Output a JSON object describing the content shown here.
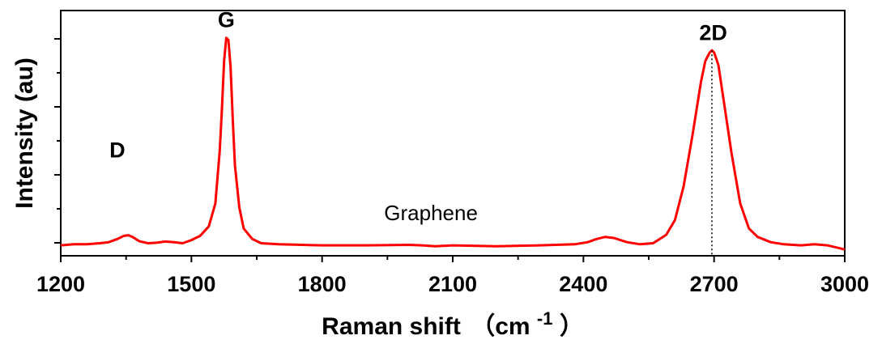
{
  "chart_data": {
    "type": "line",
    "xlabel": "Raman shift",
    "xlabel_unit": "（cm",
    "xlabel_unit_sup": "-1",
    "xlabel_unit_close": "）",
    "ylabel": "Intensity (au)",
    "xlim": [
      1200,
      3000
    ],
    "ylim": [
      -0.05,
      1.12
    ],
    "x_ticks": [
      1200,
      1500,
      1800,
      2100,
      2400,
      2700,
      3000
    ],
    "x_tick_labels": [
      "1200",
      "1500",
      "1800",
      "2100",
      "2400",
      "2700",
      "3000"
    ],
    "y_tick_labels_visible": false,
    "grid": false,
    "series": [
      {
        "color": "#ff0000",
        "x": [
          1200,
          1230,
          1260,
          1290,
          1310,
          1330,
          1345,
          1355,
          1365,
          1380,
          1400,
          1420,
          1440,
          1460,
          1480,
          1500,
          1520,
          1540,
          1555,
          1565,
          1570,
          1575,
          1580,
          1585,
          1590,
          1595,
          1600,
          1610,
          1620,
          1640,
          1660,
          1700,
          1800,
          1900,
          2000,
          2030,
          2060,
          2100,
          2200,
          2300,
          2380,
          2410,
          2430,
          2450,
          2470,
          2500,
          2530,
          2560,
          2590,
          2610,
          2630,
          2650,
          2670,
          2680,
          2690,
          2695,
          2700,
          2710,
          2720,
          2740,
          2760,
          2780,
          2800,
          2830,
          2860,
          2900,
          2930,
          2960,
          3000
        ],
        "y": [
          0.0,
          0.005,
          0.005,
          0.01,
          0.015,
          0.03,
          0.045,
          0.048,
          0.04,
          0.02,
          0.01,
          0.012,
          0.018,
          0.015,
          0.01,
          0.025,
          0.045,
          0.09,
          0.2,
          0.45,
          0.65,
          0.88,
          0.99,
          0.98,
          0.85,
          0.6,
          0.38,
          0.18,
          0.08,
          0.03,
          0.01,
          0.005,
          0.0,
          0.0,
          0.002,
          0.0,
          -0.005,
          0.0,
          -0.005,
          0.0,
          0.005,
          0.015,
          0.03,
          0.04,
          0.035,
          0.015,
          0.005,
          0.01,
          0.05,
          0.12,
          0.28,
          0.52,
          0.78,
          0.88,
          0.92,
          0.93,
          0.92,
          0.86,
          0.72,
          0.44,
          0.2,
          0.08,
          0.04,
          0.015,
          0.005,
          0.0,
          0.005,
          0.0,
          -0.02
        ]
      }
    ],
    "annotations": [
      {
        "text": "D",
        "x": 1330,
        "y": 0.42
      },
      {
        "text": "G",
        "x": 1580,
        "y": 1.04
      },
      {
        "text": "2D",
        "x": 2698,
        "y": 0.98
      },
      {
        "text": "Graphene",
        "x": 2050,
        "y": 0.12
      }
    ],
    "reference_line": {
      "x": 2695,
      "y_top": 0.93,
      "style": "dotted"
    }
  }
}
